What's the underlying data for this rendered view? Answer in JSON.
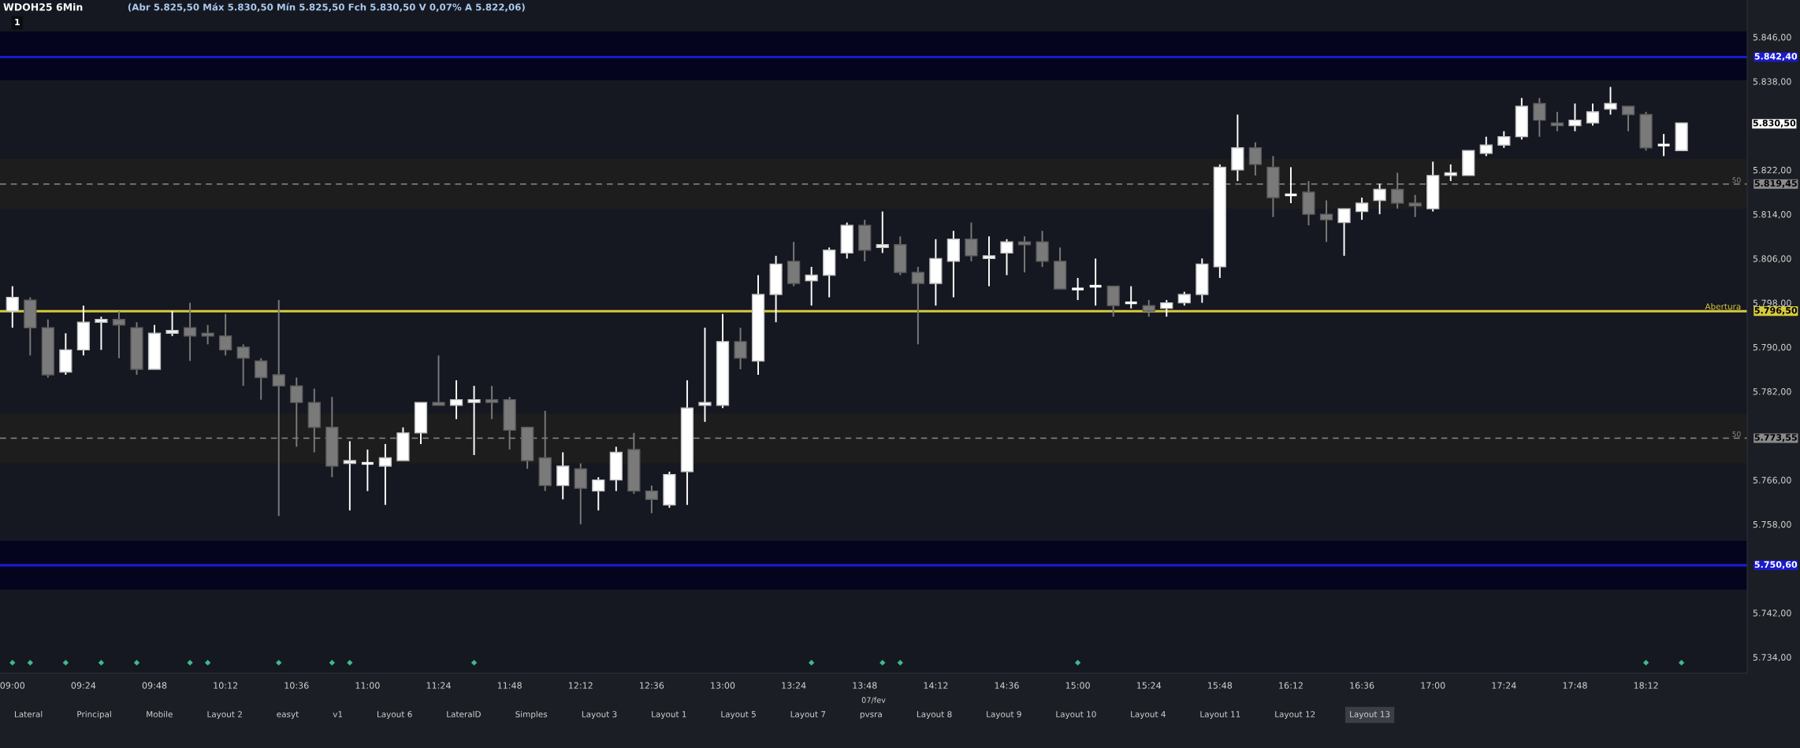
{
  "chart_data": {
    "type": "candlestick",
    "title": "WDOH25 6Min",
    "subtitle": "(Abr 5.825,50 Máx 5.830,50 Mín 5.825,50 Fch 5.830,50 V 0,07% A 5.822,06)",
    "xlabel": "07/fev",
    "x": [
      9.0,
      9.1,
      9.2,
      9.3,
      9.4,
      9.5,
      9.6,
      9.7,
      9.8,
      9.9,
      10.0,
      10.1,
      10.2,
      10.3,
      10.4,
      10.5,
      10.6,
      10.7,
      10.8,
      10.9,
      11.0,
      11.1,
      11.2,
      11.3,
      11.4,
      11.5,
      11.6,
      11.7,
      11.8,
      11.9,
      12.0,
      12.1,
      12.2,
      12.3,
      12.4,
      12.5,
      12.6,
      12.7,
      12.8,
      12.9,
      13.0,
      13.1,
      13.2,
      13.3,
      13.4,
      13.5,
      13.6,
      13.7,
      13.8,
      13.9,
      14.0,
      14.1,
      14.2,
      14.3,
      14.4,
      14.5,
      14.6,
      14.7,
      14.8,
      14.9,
      15.0,
      15.1,
      15.2,
      15.3,
      15.4,
      15.5,
      15.6,
      15.7,
      15.8,
      15.9,
      16.0,
      16.1,
      16.2,
      16.3,
      16.4,
      16.5,
      16.6,
      16.7,
      16.8,
      16.9,
      17.0,
      17.1,
      17.2,
      17.3,
      17.4,
      17.5,
      17.6,
      17.7,
      17.8,
      17.9,
      18.0,
      18.1,
      18.2,
      18.3,
      18.4
    ],
    "ohlc": [
      [
        5796.5,
        5801,
        5793.5,
        5799
      ],
      [
        5798.5,
        5799,
        5788.5,
        5793.5
      ],
      [
        5793.5,
        5795,
        5784.5,
        5785
      ],
      [
        5785.5,
        5792.5,
        5785,
        5789.5
      ],
      [
        5789.5,
        5797.5,
        5788.5,
        5794.5
      ],
      [
        5794.5,
        5795.5,
        5789.5,
        5795
      ],
      [
        5795,
        5796.5,
        5788,
        5794
      ],
      [
        5793.5,
        5794.5,
        5785,
        5786
      ],
      [
        5786,
        5794,
        5786,
        5792.5
      ],
      [
        5792.5,
        5796.5,
        5792,
        5793
      ],
      [
        5793.5,
        5798,
        5787.5,
        5792
      ],
      [
        5792.5,
        5794,
        5790.5,
        5792
      ],
      [
        5792,
        5796,
        5788.5,
        5789.5
      ],
      [
        5790,
        5790.5,
        5783,
        5788
      ],
      [
        5787.5,
        5788,
        5780.5,
        5784.5
      ],
      [
        5785,
        5798.5,
        5759.5,
        5783
      ],
      [
        5783,
        5784.5,
        5772,
        5780
      ],
      [
        5780,
        5782.5,
        5771,
        5775.5
      ],
      [
        5775.5,
        5781,
        5766.5,
        5768.5
      ],
      [
        5769,
        5773,
        5760.5,
        5769.5
      ],
      [
        5769,
        5771.5,
        5764,
        5769
      ],
      [
        5768.5,
        5772.5,
        5761.5,
        5770
      ],
      [
        5769.5,
        5775.5,
        5769.5,
        5774.5
      ],
      [
        5774.5,
        5780,
        5772.5,
        5780
      ],
      [
        5780,
        5788.5,
        5779.5,
        5779.5
      ],
      [
        5779.5,
        5784,
        5777,
        5780.5
      ],
      [
        5780,
        5783,
        5770.5,
        5780.5
      ],
      [
        5780.5,
        5783,
        5777,
        5780
      ],
      [
        5780.5,
        5781,
        5771.5,
        5775
      ],
      [
        5775.5,
        5775.5,
        5768,
        5769.5
      ],
      [
        5770,
        5778.5,
        5764,
        5765
      ],
      [
        5765,
        5771,
        5762.5,
        5768.5
      ],
      [
        5768,
        5769,
        5758,
        5764.5
      ],
      [
        5764,
        5766.5,
        5760.5,
        5766
      ],
      [
        5766,
        5772,
        5764,
        5771
      ],
      [
        5771.5,
        5774.5,
        5763.5,
        5764
      ],
      [
        5764,
        5765,
        5760,
        5762.5
      ],
      [
        5761.5,
        5767.5,
        5761,
        5767
      ],
      [
        5767.5,
        5784,
        5761.5,
        5779
      ],
      [
        5779.5,
        5793.5,
        5776.5,
        5780
      ],
      [
        5779.5,
        5796,
        5779,
        5791
      ],
      [
        5791,
        5793.5,
        5786,
        5788
      ],
      [
        5787.5,
        5803,
        5785,
        5799.5
      ],
      [
        5799.5,
        5806.5,
        5794.5,
        5805
      ],
      [
        5805.5,
        5809,
        5801,
        5801.5
      ],
      [
        5802,
        5804.5,
        5797.5,
        5803
      ],
      [
        5803,
        5808,
        5799,
        5807.5
      ],
      [
        5807,
        5812.5,
        5806,
        5812
      ],
      [
        5812,
        5813,
        5805.5,
        5807.5
      ],
      [
        5808,
        5814.5,
        5807,
        5808.5
      ],
      [
        5808.5,
        5810,
        5803,
        5803.5
      ],
      [
        5803.5,
        5804.5,
        5790.5,
        5801.5
      ],
      [
        5801.5,
        5809.5,
        5797.5,
        5806
      ],
      [
        5805.5,
        5811,
        5799,
        5809.5
      ],
      [
        5809.5,
        5812.5,
        5805.5,
        5806.5
      ],
      [
        5806,
        5810,
        5801,
        5806.5
      ],
      [
        5807,
        5809.5,
        5803,
        5809
      ],
      [
        5809,
        5810,
        5803.5,
        5808.5
      ],
      [
        5809,
        5811,
        5804.5,
        5805.5
      ],
      [
        5805.5,
        5808,
        5800.5,
        5800.5
      ],
      [
        5800.5,
        5802.5,
        5798.5,
        5800.5
      ],
      [
        5801,
        5806,
        5797.5,
        5801
      ],
      [
        5801,
        5801,
        5795.5,
        5797.5
      ],
      [
        5798,
        5801,
        5797,
        5798
      ],
      [
        5797.5,
        5798.5,
        5795.5,
        5796.5
      ],
      [
        5797,
        5798.5,
        5795.5,
        5798
      ],
      [
        5798,
        5800,
        5797.5,
        5799.5
      ],
      [
        5799.5,
        5806,
        5798,
        5805
      ],
      [
        5804.5,
        5823,
        5802.5,
        5822.5
      ],
      [
        5822,
        5832,
        5820,
        5826
      ],
      [
        5826,
        5827,
        5821,
        5823
      ],
      [
        5822.5,
        5824.5,
        5813.5,
        5817
      ],
      [
        5817.5,
        5822.5,
        5816,
        5817.5
      ],
      [
        5818,
        5820,
        5812,
        5814
      ],
      [
        5814,
        5816.5,
        5809,
        5813
      ],
      [
        5812.5,
        5815,
        5806.5,
        5815
      ],
      [
        5814.5,
        5817,
        5813,
        5816
      ],
      [
        5816.5,
        5819.5,
        5814,
        5818.5
      ],
      [
        5818.5,
        5821.5,
        5815,
        5816
      ],
      [
        5816,
        5817.5,
        5813.5,
        5815.5
      ],
      [
        5815,
        5823.5,
        5814.5,
        5821
      ],
      [
        5821,
        5823,
        5820,
        5821.5
      ],
      [
        5821,
        5825.5,
        5821,
        5825.5
      ],
      [
        5825,
        5828,
        5824.5,
        5826.5
      ],
      [
        5826.5,
        5829,
        5826,
        5828
      ],
      [
        5828,
        5835,
        5827.5,
        5833.5
      ],
      [
        5834,
        5835,
        5828,
        5831
      ],
      [
        5830.5,
        5832.5,
        5829,
        5830
      ],
      [
        5830,
        5834,
        5829,
        5831
      ],
      [
        5830.5,
        5834,
        5830,
        5832.5
      ],
      [
        5833,
        5837,
        5832,
        5834
      ],
      [
        5833.5,
        5833.5,
        5829,
        5832
      ],
      [
        5832,
        5832.5,
        5825.5,
        5826
      ],
      [
        5826.5,
        5828.5,
        5824.5,
        5826.5
      ],
      [
        5825.5,
        5830.5,
        5825.5,
        5830.5
      ]
    ],
    "colors": [
      "#ffffff",
      "#7a7a7a",
      "#7a7a7a",
      "#ffffff",
      "#ffffff",
      "#ffffff",
      "#7a7a7a",
      "#7a7a7a",
      "#ffffff",
      "#ffffff",
      "#7a7a7a",
      "#7a7a7a",
      "#7a7a7a",
      "#7a7a7a",
      "#7a7a7a",
      "#7a7a7a",
      "#7a7a7a",
      "#7a7a7a",
      "#7a7a7a",
      "#ffffff",
      "#ffffff",
      "#ffffff",
      "#ffffff",
      "#ffffff",
      "#7a7a7a",
      "#ffffff",
      "#ffffff",
      "#7a7a7a",
      "#7a7a7a",
      "#7a7a7a",
      "#7a7a7a",
      "#ffffff",
      "#7a7a7a",
      "#ffffff",
      "#ffffff",
      "#7a7a7a",
      "#7a7a7a",
      "#ffffff",
      "#ffffff",
      "#ffffff",
      "#ffffff",
      "#7a7a7a",
      "#ffffff",
      "#ffffff",
      "#7a7a7a",
      "#ffffff",
      "#ffffff",
      "#ffffff",
      "#7a7a7a",
      "#ffffff",
      "#7a7a7a",
      "#7a7a7a",
      "#ffffff",
      "#ffffff",
      "#7a7a7a",
      "#ffffff",
      "#ffffff",
      "#7a7a7a",
      "#7a7a7a",
      "#7a7a7a",
      "#ffffff",
      "#ffffff",
      "#7a7a7a",
      "#ffffff",
      "#7a7a7a",
      "#ffffff",
      "#ffffff",
      "#ffffff",
      "#ffffff",
      "#ffffff",
      "#7a7a7a",
      "#7a7a7a",
      "#ffffff",
      "#7a7a7a",
      "#7a7a7a",
      "#ffffff",
      "#ffffff",
      "#ffffff",
      "#7a7a7a",
      "#7a7a7a",
      "#ffffff",
      "#ffffff",
      "#ffffff",
      "#ffffff",
      "#ffffff",
      "#ffffff",
      "#7a7a7a",
      "#7a7a7a",
      "#ffffff",
      "#ffffff",
      "#ffffff",
      "#7a7a7a",
      "#7a7a7a",
      "#ffffff",
      "#ffffff"
    ],
    "series": [
      {
        "type": "scatter",
        "marker": "diamond",
        "color": "#3dbb8a",
        "x": [
          9.0,
          9.1,
          9.3,
          9.5,
          9.7,
          10.0,
          10.1,
          10.5,
          10.8,
          10.9,
          11.6,
          13.5,
          13.9,
          14.0,
          15.0,
          18.2,
          18.4
        ],
        "values": [
          5733,
          5733,
          5733,
          5733,
          5733,
          5733,
          5733,
          5733,
          5733,
          5733,
          5733,
          5733,
          5733,
          5733,
          5733,
          5733,
          5733
        ]
      }
    ],
    "xlim": [
      8.93,
      18.77
    ],
    "xticks": [
      {
        "value": 9.0,
        "label": "09:00"
      },
      {
        "value": 9.4,
        "label": "09:24"
      },
      {
        "value": 9.8,
        "label": "09:48"
      },
      {
        "value": 10.2,
        "label": "10:12"
      },
      {
        "value": 10.6,
        "label": "10:36"
      },
      {
        "value": 11.0,
        "label": "11:00"
      },
      {
        "value": 11.4,
        "label": "11:24"
      },
      {
        "value": 11.8,
        "label": "11:48"
      },
      {
        "value": 12.2,
        "label": "12:12"
      },
      {
        "value": 12.6,
        "label": "12:36"
      },
      {
        "value": 13.0,
        "label": "13:00"
      },
      {
        "value": 13.4,
        "label": "13:24"
      },
      {
        "value": 13.8,
        "label": "13:48"
      },
      {
        "value": 14.2,
        "label": "14:12"
      },
      {
        "value": 14.6,
        "label": "14:36"
      },
      {
        "value": 15.0,
        "label": "15:00"
      },
      {
        "value": 15.4,
        "label": "15:24"
      },
      {
        "value": 15.8,
        "label": "15:48"
      },
      {
        "value": 16.2,
        "label": "16:12"
      },
      {
        "value": 16.6,
        "label": "16:36"
      },
      {
        "value": 17.0,
        "label": "17:00"
      },
      {
        "value": 17.4,
        "label": "17:24"
      },
      {
        "value": 17.8,
        "label": "17:48"
      },
      {
        "value": 18.2,
        "label": "18:12"
      }
    ],
    "ylim": [
      5731.1,
      5852.7
    ],
    "yticks": [
      {
        "value": 5846,
        "label": "5.846,00"
      },
      {
        "value": 5838,
        "label": "5.838,00"
      },
      {
        "value": 5830.5,
        "label": "5.830,50"
      },
      {
        "value": 5822,
        "label": "5.822,00"
      },
      {
        "value": 5814,
        "label": "5.814,00"
      },
      {
        "value": 5806,
        "label": "5.806,00"
      },
      {
        "value": 5798,
        "label": "5.798,00"
      },
      {
        "value": 5790,
        "label": "5.790,00"
      },
      {
        "value": 5782,
        "label": "5.782,00"
      },
      {
        "value": 5766,
        "label": "5.766,00"
      },
      {
        "value": 5758,
        "label": "5.758,00"
      },
      {
        "value": 5742,
        "label": "5.742,00"
      },
      {
        "value": 5734,
        "label": "5.734,00"
      }
    ],
    "bands": [
      {
        "axis": "y",
        "from": 5838.2,
        "to": 5847.0,
        "color": "#04041f"
      },
      {
        "axis": "y",
        "from": 5815.0,
        "to": 5824.0,
        "color": "#1d1d1d"
      },
      {
        "axis": "y",
        "from": 5769.0,
        "to": 5778.0,
        "color": "#1d1d1d"
      },
      {
        "axis": "y",
        "from": 5746.2,
        "to": 5755.0,
        "color": "#04041f"
      }
    ],
    "ref_lines": [
      {
        "axis": "y",
        "value": 5842.4,
        "label": "5.842,40",
        "color": "#1a1acc",
        "line_style": "solid"
      },
      {
        "axis": "y",
        "value": 5819.45,
        "label": "5.819,45",
        "color": "#8a8a8a",
        "line_style": "dashed"
      },
      {
        "axis": "y",
        "value": 5796.5,
        "label": "5.796,50",
        "color": "#d6ca3f",
        "line_style": "solid"
      },
      {
        "axis": "y",
        "value": 5773.55,
        "label": "5.773,55",
        "color": "#8a8a8a",
        "line_style": "dashed"
      },
      {
        "axis": "y",
        "value": 5750.6,
        "label": "5.750,60",
        "color": "#1a1acc",
        "line_style": "solid"
      }
    ],
    "annotations": [
      "1",
      "Lateral",
      "Principal",
      "Mobile",
      "Layout 2",
      "easyt",
      "v1",
      "Layout 6",
      "LateralD",
      "Simples",
      "Layout 3",
      "Layout 1",
      "Layout 5",
      "Layout 7",
      "pvsra",
      "Layout 8",
      "Layout 9",
      "Layout 10",
      "Layout 4",
      "Layout 11",
      "Layout 12",
      "Layout 13",
      {
        "text": "50",
        "y": 5819.45
      },
      {
        "text": "Abertura",
        "y": 5796.5
      },
      {
        "text": "50",
        "y": 5773.55
      }
    ]
  }
}
